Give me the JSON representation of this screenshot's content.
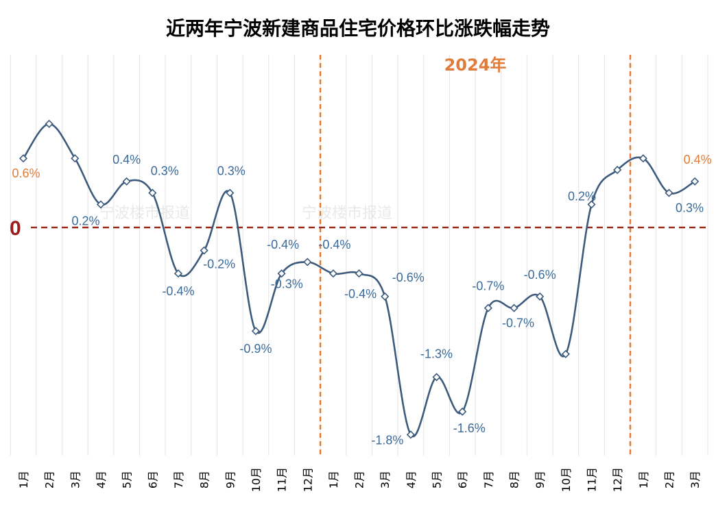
{
  "chart_data": {
    "type": "line",
    "title": "近两年宁波新建商品住宅价格环比涨跌幅走势",
    "year_marker": "2024年",
    "zero_label": "0",
    "watermarks": [
      "宁波楼市报道",
      "宁波楼市报道"
    ],
    "categories": [
      "1月",
      "2月",
      "3月",
      "4月",
      "5月",
      "6月",
      "7月",
      "8月",
      "9月",
      "10月",
      "11月",
      "12月",
      "1月",
      "2月",
      "3月",
      "4月",
      "5月",
      "6月",
      "7月",
      "8月",
      "9月",
      "10月",
      "11月",
      "12月",
      "1月",
      "2月",
      "3月"
    ],
    "values": [
      0.6,
      0.9,
      0.6,
      0.2,
      0.4,
      0.3,
      -0.4,
      -0.2,
      0.3,
      -0.9,
      -0.4,
      -0.3,
      -0.4,
      -0.4,
      -0.6,
      -1.8,
      -1.3,
      -1.6,
      -0.7,
      -0.7,
      -0.6,
      -1.1,
      0.2,
      0.5,
      0.6,
      0.3,
      0.4
    ],
    "labels": [
      "0.6%",
      "",
      "0.2%",
      "0.4%",
      "0.3%",
      "-0.4%",
      "-0.2%",
      "0.3%",
      "-0.9%",
      "-0.4%",
      "-0.3%",
      "-0.4%",
      "-0.4%",
      "-0.6%",
      "-1.8%",
      "-1.3%",
      "-1.6%",
      "-0.7%",
      "-0.7%",
      "-0.6%",
      "",
      "0.2%",
      "",
      "",
      "0.4%",
      "0.3%"
    ],
    "label_for_index": [
      0,
      null,
      3,
      4,
      5,
      6,
      7,
      8,
      9,
      10,
      11,
      12,
      13,
      14,
      15,
      16,
      17,
      18,
      19,
      20,
      null,
      22,
      null,
      null,
      26,
      25
    ],
    "ylim": [
      -2.0,
      1.1
    ],
    "grid": "vertical",
    "colors": {
      "line": "#3c5a7c",
      "label_blue": "#3a6a9a",
      "label_orange": "#e07b39",
      "zero_line": "#9b2a1a",
      "zero_text": "#9b1c1c",
      "year_marker": "#e07b39",
      "gridline": "#e3e3e3"
    }
  }
}
